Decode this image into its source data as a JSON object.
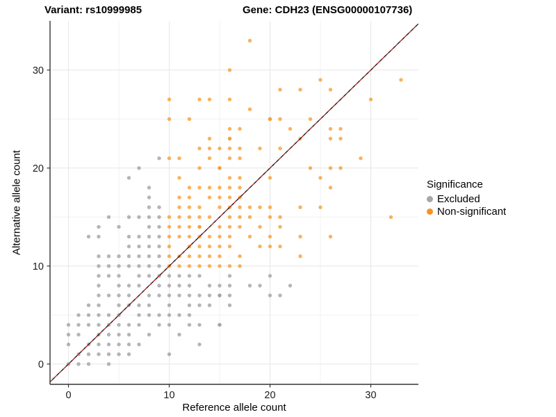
{
  "titles": {
    "variant": "Variant: rs10999985",
    "gene": "Gene: CDH23 (ENSG00000107736)"
  },
  "legend": {
    "title": "Significance",
    "items": [
      {
        "label": "Excluded",
        "color": "#a6a6a6"
      },
      {
        "label": "Non-significant",
        "color": "#f79420"
      }
    ]
  },
  "colors": {
    "excluded": "#999999",
    "non_significant": "#f79420",
    "diagonal_red": "#b22222",
    "diagonal_black": "#1a1a1a",
    "grid_major": "#e6e6e6",
    "grid_minor": "#f2f2f2",
    "axis_line": "#333333",
    "tick_text": "#1a1a1a"
  },
  "chart_data": {
    "type": "scatter",
    "xlabel": "Reference allele count",
    "ylabel": "Alternative allele count",
    "x_ticks": [
      0,
      10,
      20,
      30
    ],
    "y_ticks": [
      0,
      10,
      20,
      30
    ],
    "x_minor_ticks": [
      5,
      15,
      25
    ],
    "y_minor_ticks": [
      5,
      15,
      25
    ],
    "xlim": [
      -1.83,
      34.72
    ],
    "ylim": [
      -2.07,
      35.02
    ],
    "grid": true,
    "legend_position": "right",
    "reference_line": "y = x (dashed, red and black interleaved)",
    "series": [
      {
        "name": "Excluded",
        "points": [
          [
            9,
            21
          ],
          [
            7,
            20
          ],
          [
            6,
            19
          ],
          [
            8,
            18
          ],
          [
            8,
            17
          ],
          [
            8,
            16
          ],
          [
            9,
            16
          ],
          [
            4,
            15
          ],
          [
            6,
            15
          ],
          [
            7,
            15
          ],
          [
            8,
            15
          ],
          [
            9,
            15
          ],
          [
            3,
            14
          ],
          [
            5,
            14
          ],
          [
            8,
            14
          ],
          [
            9,
            14
          ],
          [
            2,
            13
          ],
          [
            3,
            13
          ],
          [
            6,
            13
          ],
          [
            7,
            13
          ],
          [
            8,
            13
          ],
          [
            9,
            13
          ],
          [
            6,
            12
          ],
          [
            7,
            12
          ],
          [
            8,
            12
          ],
          [
            9,
            12
          ],
          [
            3,
            11
          ],
          [
            4,
            11
          ],
          [
            5,
            11
          ],
          [
            6,
            11
          ],
          [
            7,
            11
          ],
          [
            8,
            11
          ],
          [
            9,
            11
          ],
          [
            3,
            10
          ],
          [
            4,
            10
          ],
          [
            5,
            10
          ],
          [
            6,
            10
          ],
          [
            7,
            10
          ],
          [
            8,
            10
          ],
          [
            9,
            10
          ],
          [
            3,
            9
          ],
          [
            4,
            9
          ],
          [
            5,
            9
          ],
          [
            7,
            9
          ],
          [
            8,
            9
          ],
          [
            9,
            9
          ],
          [
            10,
            9
          ],
          [
            11,
            9
          ],
          [
            12,
            9
          ],
          [
            13,
            9
          ],
          [
            16,
            9
          ],
          [
            20,
            9
          ],
          [
            3,
            8
          ],
          [
            5,
            8
          ],
          [
            6,
            8
          ],
          [
            7,
            8
          ],
          [
            9,
            8
          ],
          [
            10,
            8
          ],
          [
            11,
            8
          ],
          [
            12,
            8
          ],
          [
            14,
            8
          ],
          [
            15,
            8
          ],
          [
            16,
            8
          ],
          [
            18,
            8
          ],
          [
            19,
            8
          ],
          [
            22,
            8
          ],
          [
            3,
            7
          ],
          [
            4,
            7
          ],
          [
            5,
            7
          ],
          [
            6,
            7
          ],
          [
            8,
            7
          ],
          [
            9,
            7
          ],
          [
            10,
            7
          ],
          [
            11,
            7
          ],
          [
            12,
            7
          ],
          [
            13,
            7
          ],
          [
            14,
            7
          ],
          [
            15,
            7
          ],
          [
            16,
            7
          ],
          [
            20,
            7
          ],
          [
            21,
            7
          ],
          [
            2,
            6
          ],
          [
            3,
            6
          ],
          [
            5,
            6
          ],
          [
            6,
            6
          ],
          [
            7,
            6
          ],
          [
            8,
            6
          ],
          [
            10,
            6
          ],
          [
            12,
            6
          ],
          [
            13,
            6
          ],
          [
            14,
            6
          ],
          [
            16,
            6
          ],
          [
            1,
            5
          ],
          [
            2,
            5
          ],
          [
            3,
            5
          ],
          [
            4,
            5
          ],
          [
            5,
            5
          ],
          [
            7,
            5
          ],
          [
            8,
            5
          ],
          [
            9,
            5
          ],
          [
            10,
            5
          ],
          [
            11,
            5
          ],
          [
            12,
            5
          ],
          [
            0,
            4
          ],
          [
            1,
            4
          ],
          [
            2,
            4
          ],
          [
            3,
            4
          ],
          [
            4,
            4
          ],
          [
            5,
            4
          ],
          [
            6,
            4
          ],
          [
            7,
            4
          ],
          [
            9,
            4
          ],
          [
            10,
            4
          ],
          [
            12,
            4
          ],
          [
            13,
            4
          ],
          [
            15,
            4
          ],
          [
            0,
            3
          ],
          [
            1,
            3
          ],
          [
            3,
            3
          ],
          [
            4,
            3
          ],
          [
            5,
            3
          ],
          [
            6,
            3
          ],
          [
            8,
            3
          ],
          [
            11,
            3
          ],
          [
            0,
            2
          ],
          [
            2,
            2
          ],
          [
            3,
            2
          ],
          [
            4,
            2
          ],
          [
            5,
            2
          ],
          [
            6,
            2
          ],
          [
            7,
            2
          ],
          [
            13,
            2
          ],
          [
            1,
            1
          ],
          [
            2,
            1
          ],
          [
            3,
            1
          ],
          [
            4,
            1
          ],
          [
            5,
            1
          ],
          [
            6,
            1
          ],
          [
            10,
            1
          ],
          [
            0,
            0
          ],
          [
            1,
            0
          ],
          [
            2,
            0
          ],
          [
            4,
            0
          ]
        ],
        "overplotted": [
          [
            15,
            7
          ],
          [
            15,
            4
          ]
        ]
      },
      {
        "name": "Non-significant",
        "points": [
          [
            18,
            33
          ],
          [
            16,
            30
          ],
          [
            25,
            29
          ],
          [
            33,
            29
          ],
          [
            21,
            28
          ],
          [
            23,
            28
          ],
          [
            26,
            28
          ],
          [
            10,
            27
          ],
          [
            13,
            27
          ],
          [
            14,
            27
          ],
          [
            16,
            27
          ],
          [
            30,
            27
          ],
          [
            18,
            26
          ],
          [
            10,
            25
          ],
          [
            12,
            25
          ],
          [
            20,
            25
          ],
          [
            21,
            25
          ],
          [
            24,
            25
          ],
          [
            16,
            24
          ],
          [
            17,
            24
          ],
          [
            22,
            24
          ],
          [
            26,
            24
          ],
          [
            27,
            24
          ],
          [
            14,
            23
          ],
          [
            16,
            23
          ],
          [
            23,
            23
          ],
          [
            26,
            23
          ],
          [
            27,
            23
          ],
          [
            13,
            22
          ],
          [
            14,
            22
          ],
          [
            15,
            22
          ],
          [
            16,
            22
          ],
          [
            17,
            22
          ],
          [
            19,
            22
          ],
          [
            21,
            22
          ],
          [
            10,
            21
          ],
          [
            11,
            21
          ],
          [
            14,
            21
          ],
          [
            16,
            21
          ],
          [
            17,
            21
          ],
          [
            29,
            21
          ],
          [
            13,
            20
          ],
          [
            15,
            20
          ],
          [
            24,
            20
          ],
          [
            26,
            20
          ],
          [
            27,
            20
          ],
          [
            11,
            19
          ],
          [
            16,
            19
          ],
          [
            17,
            19
          ],
          [
            20,
            19
          ],
          [
            25,
            19
          ],
          [
            12,
            18
          ],
          [
            13,
            18
          ],
          [
            14,
            18
          ],
          [
            15,
            18
          ],
          [
            16,
            18
          ],
          [
            17,
            18
          ],
          [
            26,
            18
          ],
          [
            11,
            17
          ],
          [
            12,
            17
          ],
          [
            14,
            17
          ],
          [
            15,
            17
          ],
          [
            16,
            17
          ],
          [
            17,
            17
          ],
          [
            11,
            16
          ],
          [
            12,
            16
          ],
          [
            13,
            16
          ],
          [
            15,
            16
          ],
          [
            16,
            16
          ],
          [
            17,
            16
          ],
          [
            18,
            16
          ],
          [
            19,
            16
          ],
          [
            20,
            16
          ],
          [
            23,
            16
          ],
          [
            25,
            16
          ],
          [
            10,
            15
          ],
          [
            11,
            15
          ],
          [
            12,
            15
          ],
          [
            13,
            15
          ],
          [
            14,
            15
          ],
          [
            16,
            15
          ],
          [
            17,
            15
          ],
          [
            18,
            15
          ],
          [
            20,
            15
          ],
          [
            21,
            15
          ],
          [
            32,
            15
          ],
          [
            10,
            14
          ],
          [
            11,
            14
          ],
          [
            12,
            14
          ],
          [
            13,
            14
          ],
          [
            15,
            14
          ],
          [
            16,
            14
          ],
          [
            17,
            14
          ],
          [
            19,
            14
          ],
          [
            21,
            14
          ],
          [
            10,
            13
          ],
          [
            11,
            13
          ],
          [
            12,
            13
          ],
          [
            13,
            13
          ],
          [
            14,
            13
          ],
          [
            15,
            13
          ],
          [
            16,
            13
          ],
          [
            18,
            13
          ],
          [
            20,
            13
          ],
          [
            23,
            13
          ],
          [
            26,
            13
          ],
          [
            10,
            12
          ],
          [
            12,
            12
          ],
          [
            13,
            12
          ],
          [
            14,
            12
          ],
          [
            15,
            12
          ],
          [
            16,
            12
          ],
          [
            19,
            12
          ],
          [
            20,
            12
          ],
          [
            21,
            12
          ],
          [
            10,
            11
          ],
          [
            11,
            11
          ],
          [
            12,
            11
          ],
          [
            13,
            11
          ],
          [
            14,
            11
          ],
          [
            15,
            11
          ],
          [
            17,
            11
          ],
          [
            23,
            11
          ],
          [
            10,
            10
          ],
          [
            11,
            10
          ],
          [
            12,
            10
          ],
          [
            13,
            10
          ],
          [
            14,
            10
          ],
          [
            15,
            10
          ],
          [
            16,
            10
          ],
          [
            17,
            10
          ]
        ],
        "overplotted": [
          [
            15,
            20
          ],
          [
            13,
            14
          ],
          [
            16,
            23
          ],
          [
            20,
            25
          ]
        ]
      }
    ]
  }
}
